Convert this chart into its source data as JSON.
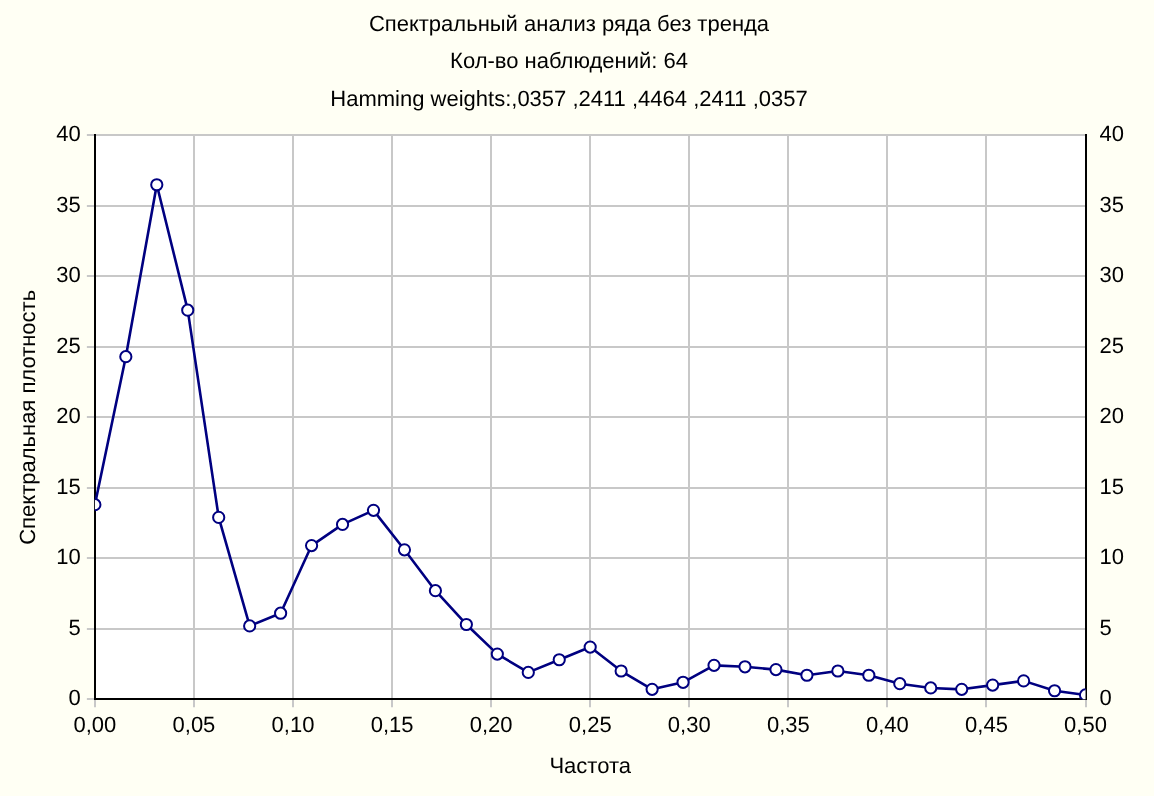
{
  "chart_data": {
    "type": "line",
    "title": "Спектральный анализ ряда без тренда",
    "subtitle": [
      "Кол-во наблюдений: 64",
      "Hamming weights:,0357 ,2411 ,4464 ,2411 ,0357"
    ],
    "xlabel": "Частота",
    "ylabel": "Спектральная плотность",
    "x": [
      0,
      0.015625,
      0.03125,
      0.046875,
      0.0625,
      0.078125,
      0.09375,
      0.109375,
      0.125,
      0.140625,
      0.15625,
      0.171875,
      0.1875,
      0.203125,
      0.21875,
      0.234375,
      0.25,
      0.265625,
      0.28125,
      0.296875,
      0.3125,
      0.328125,
      0.34375,
      0.359375,
      0.375,
      0.390625,
      0.40625,
      0.421875,
      0.4375,
      0.453125,
      0.46875,
      0.484375,
      0.5
    ],
    "series": [
      {
        "color": "#000080",
        "values": [
          13.8,
          24.3,
          36.5,
          27.6,
          12.9,
          5.2,
          6.1,
          10.9,
          12.4,
          13.4,
          10.6,
          7.7,
          5.3,
          3.2,
          1.9,
          2.8,
          3.7,
          2.0,
          0.7,
          1.2,
          2.4,
          2.3,
          2.1,
          1.7,
          2.0,
          1.7,
          1.1,
          0.8,
          0.7,
          1.0,
          1.3,
          0.6,
          0.3
        ]
      }
    ],
    "xlim": [
      0,
      0.5
    ],
    "xticks": [
      {
        "value": 0,
        "label": "0,00"
      },
      {
        "value": 0.05,
        "label": "0,05"
      },
      {
        "value": 0.1,
        "label": "0,10"
      },
      {
        "value": 0.15,
        "label": "0,15"
      },
      {
        "value": 0.2,
        "label": "0,20"
      },
      {
        "value": 0.25,
        "label": "0,25"
      },
      {
        "value": 0.3,
        "label": "0,30"
      },
      {
        "value": 0.35,
        "label": "0,35"
      },
      {
        "value": 0.4,
        "label": "0,40"
      },
      {
        "value": 0.45,
        "label": "0,45"
      },
      {
        "value": 0.5,
        "label": "0,50"
      }
    ],
    "ylim": [
      0,
      40
    ],
    "yticks": [
      0,
      5,
      10,
      15,
      20,
      25,
      30,
      35,
      40
    ],
    "y2lim": [
      0,
      40
    ],
    "y2ticks": [
      0,
      5,
      10,
      15,
      20,
      25,
      30,
      35,
      40
    ],
    "grid": true,
    "legend": false,
    "marker": "circle",
    "line_style": "solid"
  }
}
